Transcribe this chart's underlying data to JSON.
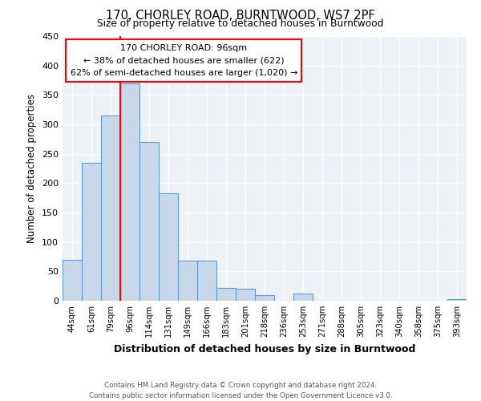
{
  "title": "170, CHORLEY ROAD, BURNTWOOD, WS7 2PF",
  "subtitle": "Size of property relative to detached houses in Burntwood",
  "xlabel": "Distribution of detached houses by size in Burntwood",
  "ylabel": "Number of detached properties",
  "bar_labels": [
    "44sqm",
    "61sqm",
    "79sqm",
    "96sqm",
    "114sqm",
    "131sqm",
    "149sqm",
    "166sqm",
    "183sqm",
    "201sqm",
    "218sqm",
    "236sqm",
    "253sqm",
    "271sqm",
    "288sqm",
    "305sqm",
    "323sqm",
    "340sqm",
    "358sqm",
    "375sqm",
    "393sqm"
  ],
  "bar_values": [
    70,
    235,
    315,
    370,
    270,
    183,
    68,
    68,
    22,
    20,
    10,
    0,
    12,
    0,
    0,
    0,
    0,
    0,
    0,
    0,
    3
  ],
  "bar_color": "#c8d8e8",
  "bar_edge_color": "#5b9bd5",
  "highlight_line_color": "red",
  "highlight_bar_index": 3,
  "ylim": [
    0,
    450
  ],
  "yticks": [
    0,
    50,
    100,
    150,
    200,
    250,
    300,
    350,
    400,
    450
  ],
  "annotation_title": "170 CHORLEY ROAD: 96sqm",
  "annotation_line1": "← 38% of detached houses are smaller (622)",
  "annotation_line2": "62% of semi-detached houses are larger (1,020) →",
  "annotation_box_color": "white",
  "annotation_box_edge_color": "red",
  "footer_line1": "Contains HM Land Registry data © Crown copyright and database right 2024.",
  "footer_line2": "Contains public sector information licensed under the Open Government Licence v3.0.",
  "background_color": "#eef2f7",
  "grid_color": "white"
}
